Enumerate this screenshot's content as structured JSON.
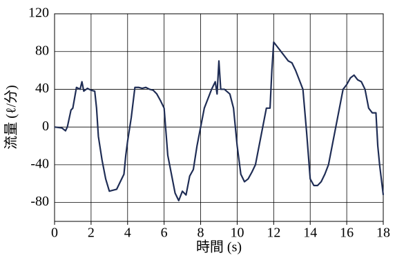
{
  "chart_data": {
    "type": "line",
    "x_label": "時間 (s)",
    "y_label": "流量 (ℓ/分)",
    "xlim": [
      0,
      18
    ],
    "xticks": [
      0,
      2,
      4,
      6,
      8,
      10,
      12,
      14,
      16,
      18
    ],
    "ylim": [
      -100,
      120
    ],
    "yticks": [
      120,
      80,
      40,
      0,
      -40,
      -80
    ],
    "grid": true,
    "color": "#1f2d55",
    "x": [
      0,
      0.4,
      0.6,
      0.7,
      0.9,
      1.0,
      1.2,
      1.4,
      1.5,
      1.6,
      1.8,
      2.0,
      2.2,
      2.3,
      2.4,
      2.6,
      2.8,
      3.0,
      3.2,
      3.4,
      3.6,
      3.8,
      3.9,
      4.0,
      4.2,
      4.4,
      4.6,
      4.8,
      5.0,
      5.2,
      5.4,
      5.6,
      5.8,
      6.0,
      6.1,
      6.2,
      6.4,
      6.6,
      6.8,
      7.0,
      7.2,
      7.4,
      7.6,
      7.8,
      8.0,
      8.2,
      8.4,
      8.6,
      8.8,
      8.9,
      9.0,
      9.1,
      9.3,
      9.6,
      9.8,
      10.0,
      10.2,
      10.4,
      10.6,
      10.8,
      11.0,
      11.2,
      11.4,
      11.6,
      11.8,
      11.9,
      12.0,
      12.2,
      12.4,
      12.6,
      12.8,
      13.0,
      13.2,
      13.4,
      13.6,
      13.8,
      14.0,
      14.2,
      14.4,
      14.6,
      14.8,
      15.0,
      15.2,
      15.4,
      15.6,
      15.8,
      16.0,
      16.2,
      16.4,
      16.6,
      16.8,
      17.0,
      17.2,
      17.4,
      17.6,
      17.7,
      17.8,
      18.0
    ],
    "values": [
      0,
      -1,
      -4,
      0,
      18,
      20,
      42,
      40,
      48,
      38,
      41,
      39,
      38,
      20,
      -10,
      -35,
      -55,
      -68,
      -67,
      -66,
      -58,
      -50,
      -30,
      -15,
      10,
      42,
      42,
      41,
      42,
      40,
      39,
      35,
      28,
      20,
      -5,
      -30,
      -50,
      -70,
      -78,
      -68,
      -72,
      -52,
      -45,
      -20,
      0,
      20,
      30,
      40,
      48,
      35,
      70,
      40,
      40,
      35,
      20,
      -20,
      -50,
      -58,
      -55,
      -48,
      -40,
      -20,
      0,
      20,
      20,
      60,
      90,
      85,
      80,
      75,
      70,
      68,
      60,
      50,
      40,
      -5,
      -55,
      -62,
      -62,
      -58,
      -50,
      -40,
      -20,
      0,
      20,
      40,
      45,
      52,
      55,
      50,
      48,
      40,
      20,
      15,
      15,
      -20,
      -40,
      -72
    ]
  }
}
